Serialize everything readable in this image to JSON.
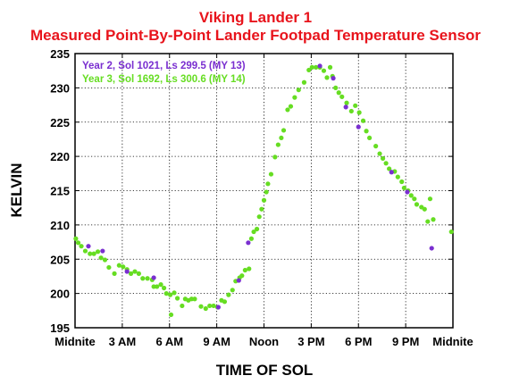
{
  "chart_data": {
    "type": "scatter",
    "title": "Viking Lander 1",
    "subtitle": "Measured Point-By-Point Lander Footpad Temperature Sensor",
    "xlabel": "TIME OF SOL",
    "ylabel": "KELVIN",
    "xlim": [
      0,
      24
    ],
    "ylim": [
      195,
      235
    ],
    "x_ticks": [
      {
        "value": 0,
        "label": "Midnite"
      },
      {
        "value": 3,
        "label": "3 AM"
      },
      {
        "value": 6,
        "label": "6 AM"
      },
      {
        "value": 9,
        "label": "9 AM"
      },
      {
        "value": 12,
        "label": "Noon"
      },
      {
        "value": 15,
        "label": "3 PM"
      },
      {
        "value": 18,
        "label": "6 PM"
      },
      {
        "value": 21,
        "label": "9 PM"
      },
      {
        "value": 24,
        "label": "Midnite"
      }
    ],
    "y_ticks": [
      195,
      200,
      205,
      210,
      215,
      220,
      225,
      230,
      235
    ],
    "grid": true,
    "legend_position": "top-left",
    "series": [
      {
        "name": "Year 2, Sol 1021, Ls 299.5 (MY 13)",
        "color": "#7a2fd0",
        "points": [
          [
            0.85,
            206.9
          ],
          [
            1.75,
            206.2
          ],
          [
            3.3,
            203.2
          ],
          [
            5.0,
            202.3
          ],
          [
            9.1,
            198.0
          ],
          [
            10.4,
            201.9
          ],
          [
            11.0,
            207.4
          ],
          [
            15.55,
            233.2
          ],
          [
            16.4,
            231.4
          ],
          [
            17.2,
            227.2
          ],
          [
            18.0,
            224.3
          ],
          [
            20.1,
            217.7
          ],
          [
            21.1,
            214.8
          ],
          [
            22.65,
            206.6
          ]
        ]
      },
      {
        "name": "Year 3, Sol 1692, Ls 300.6 (MY 14)",
        "color": "#66dd22",
        "points": [
          [
            0.05,
            208.0
          ],
          [
            0.2,
            207.4
          ],
          [
            0.4,
            206.9
          ],
          [
            0.65,
            206.2
          ],
          [
            0.95,
            205.8
          ],
          [
            1.2,
            205.8
          ],
          [
            1.45,
            206.1
          ],
          [
            1.65,
            205.2
          ],
          [
            1.9,
            204.9
          ],
          [
            2.15,
            203.8
          ],
          [
            2.5,
            202.9
          ],
          [
            2.8,
            204.1
          ],
          [
            3.05,
            203.9
          ],
          [
            3.3,
            203.5
          ],
          [
            3.55,
            202.9
          ],
          [
            3.8,
            203.2
          ],
          [
            4.05,
            202.9
          ],
          [
            4.3,
            202.2
          ],
          [
            4.6,
            202.2
          ],
          [
            4.9,
            202.0
          ],
          [
            5.0,
            201.0
          ],
          [
            5.2,
            201.0
          ],
          [
            5.45,
            201.3
          ],
          [
            5.65,
            200.8
          ],
          [
            5.8,
            200.0
          ],
          [
            6.05,
            199.8
          ],
          [
            6.1,
            196.9
          ],
          [
            6.3,
            200.1
          ],
          [
            6.5,
            199.3
          ],
          [
            6.8,
            198.2
          ],
          [
            7.0,
            199.2
          ],
          [
            7.2,
            199.0
          ],
          [
            7.4,
            199.2
          ],
          [
            7.6,
            199.2
          ],
          [
            8.0,
            198.1
          ],
          [
            8.3,
            197.8
          ],
          [
            8.55,
            198.2
          ],
          [
            8.8,
            198.2
          ],
          [
            9.05,
            198.0
          ],
          [
            9.3,
            199.0
          ],
          [
            9.5,
            198.8
          ],
          [
            9.75,
            199.8
          ],
          [
            10.0,
            200.5
          ],
          [
            10.2,
            201.8
          ],
          [
            10.45,
            202.3
          ],
          [
            10.6,
            202.6
          ],
          [
            10.8,
            203.4
          ],
          [
            11.05,
            203.6
          ],
          [
            11.2,
            208.0
          ],
          [
            11.35,
            209.0
          ],
          [
            11.55,
            209.4
          ],
          [
            11.7,
            211.2
          ],
          [
            11.85,
            212.3
          ],
          [
            12.0,
            213.6
          ],
          [
            12.15,
            214.8
          ],
          [
            12.25,
            216.0
          ],
          [
            12.45,
            217.4
          ],
          [
            12.7,
            219.9
          ],
          [
            12.9,
            221.7
          ],
          [
            13.1,
            222.7
          ],
          [
            13.25,
            223.8
          ],
          [
            13.5,
            226.8
          ],
          [
            13.7,
            227.3
          ],
          [
            13.95,
            228.6
          ],
          [
            14.2,
            229.7
          ],
          [
            14.55,
            230.8
          ],
          [
            14.85,
            232.6
          ],
          [
            15.05,
            233.0
          ],
          [
            15.3,
            233.0
          ],
          [
            15.55,
            233.0
          ],
          [
            15.8,
            232.5
          ],
          [
            16.0,
            231.5
          ],
          [
            16.2,
            233.0
          ],
          [
            16.35,
            231.7
          ],
          [
            16.55,
            230.0
          ],
          [
            16.75,
            229.3
          ],
          [
            16.95,
            228.7
          ],
          [
            17.25,
            227.8
          ],
          [
            17.55,
            226.6
          ],
          [
            17.8,
            227.4
          ],
          [
            18.05,
            226.4
          ],
          [
            18.3,
            225.2
          ],
          [
            18.5,
            223.7
          ],
          [
            18.7,
            222.7
          ],
          [
            19.1,
            221.5
          ],
          [
            19.35,
            220.4
          ],
          [
            19.55,
            219.7
          ],
          [
            19.75,
            219.0
          ],
          [
            19.95,
            218.2
          ],
          [
            20.3,
            217.8
          ],
          [
            20.5,
            217.0
          ],
          [
            20.75,
            216.3
          ],
          [
            20.9,
            215.4
          ],
          [
            21.15,
            215.0
          ],
          [
            21.35,
            214.3
          ],
          [
            21.55,
            213.8
          ],
          [
            21.7,
            213.0
          ],
          [
            22.0,
            212.6
          ],
          [
            22.2,
            212.3
          ],
          [
            22.4,
            210.5
          ],
          [
            22.55,
            213.8
          ],
          [
            22.75,
            210.8
          ],
          [
            23.9,
            209.0
          ]
        ]
      }
    ]
  }
}
